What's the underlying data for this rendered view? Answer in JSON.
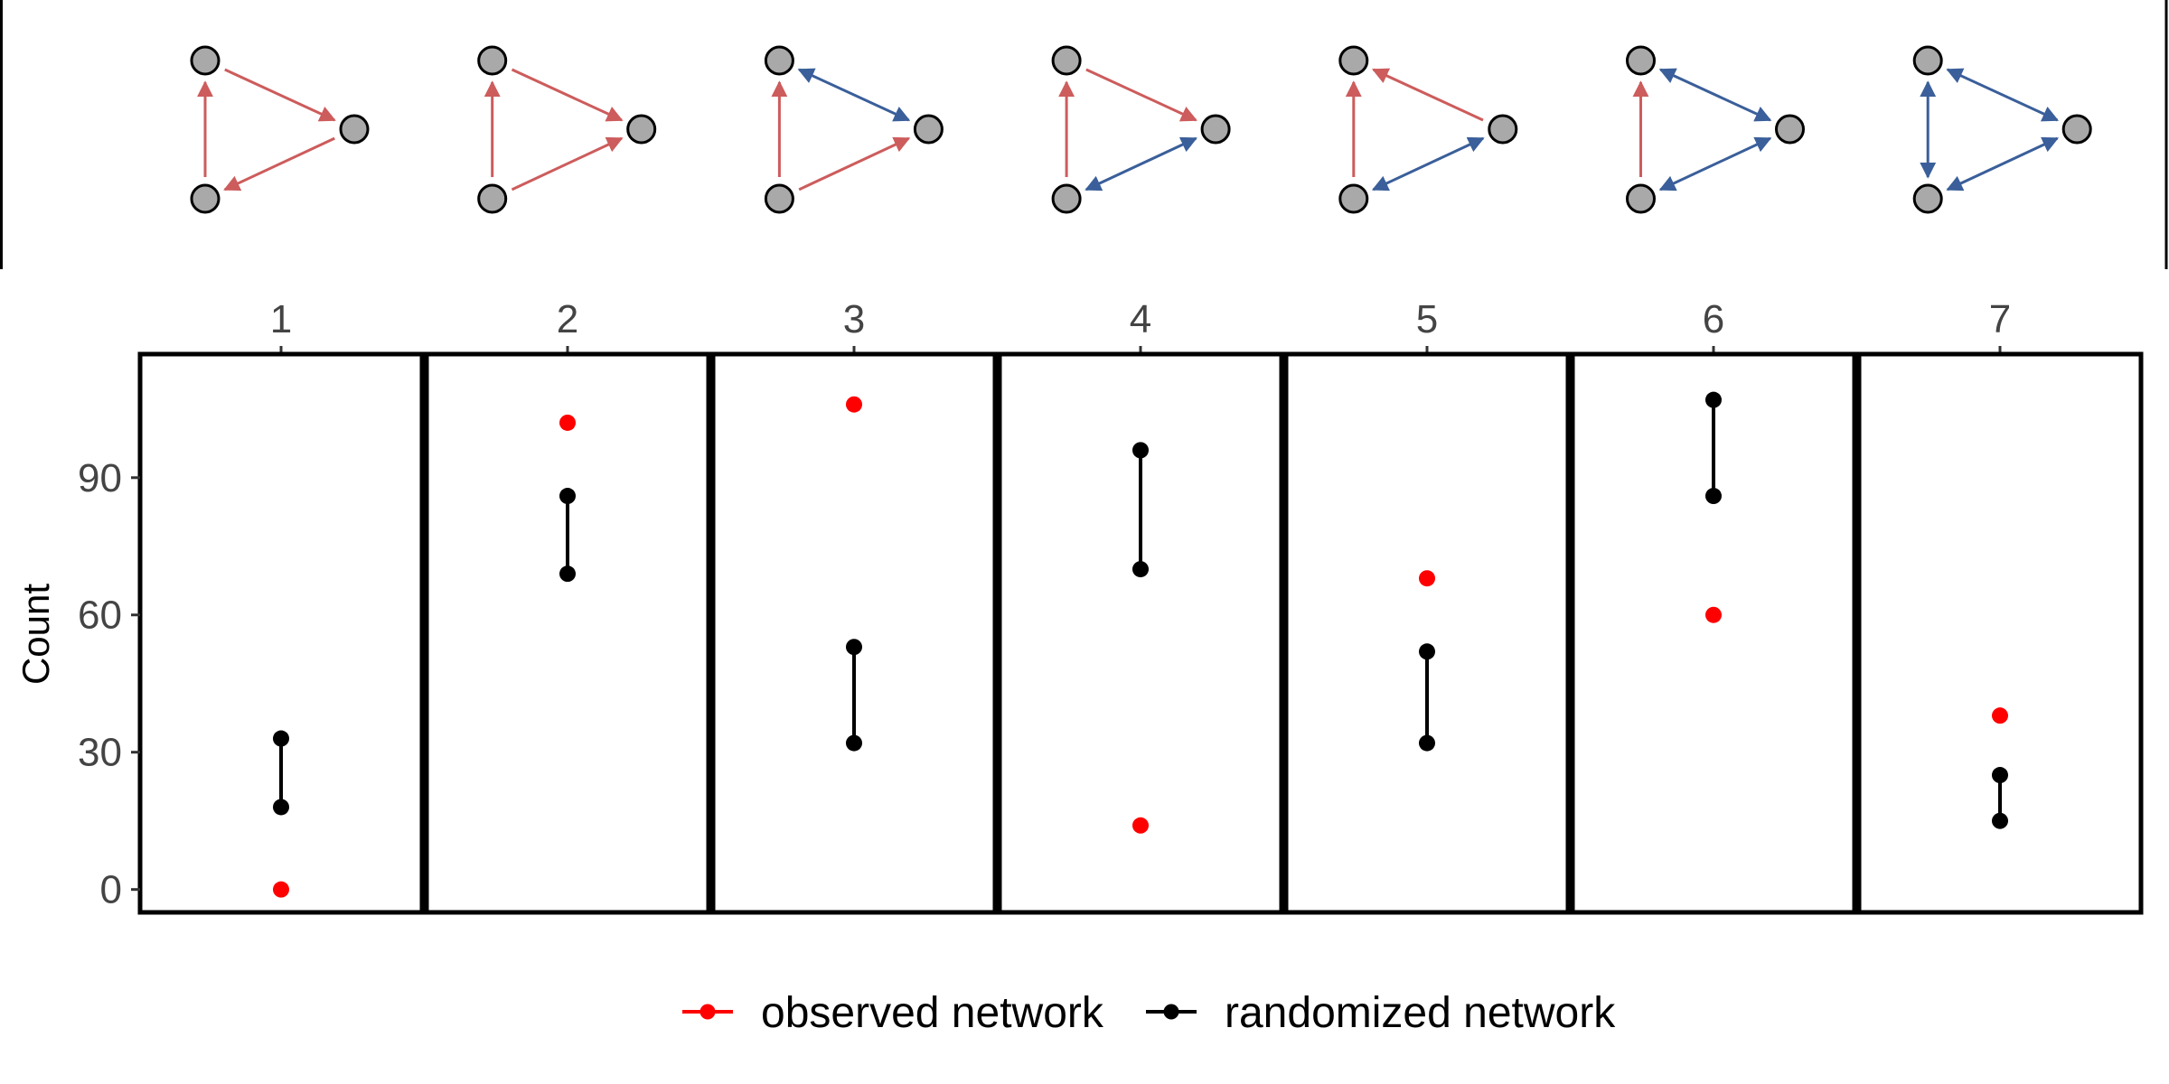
{
  "chart_data": {
    "type": "scatter",
    "ylabel": "Count",
    "ylim": [
      -5,
      117
    ],
    "yticks": [
      0,
      30,
      60,
      90
    ],
    "yticklabels": [
      "0",
      "30",
      "60",
      "90"
    ],
    "categories": [
      "1",
      "2",
      "3",
      "4",
      "5",
      "6",
      "7"
    ],
    "series": [
      {
        "name": "observed network",
        "kind": "point",
        "color": "#ff0000",
        "values": [
          0,
          102,
          106,
          14,
          68,
          60,
          38
        ]
      },
      {
        "name": "randomized network",
        "kind": "range",
        "color": "#000000",
        "ranges": [
          [
            18,
            33
          ],
          [
            69,
            86
          ],
          [
            32,
            53
          ],
          [
            70,
            96
          ],
          [
            32,
            52
          ],
          [
            86,
            107
          ],
          [
            15,
            25
          ]
        ]
      }
    ],
    "motifs": [
      {
        "id": "1",
        "edges": [
          [
            "left-bottom",
            "left-top",
            "forward"
          ],
          [
            "left-top",
            "right",
            "forward"
          ],
          [
            "right",
            "left-bottom",
            "forward"
          ]
        ]
      },
      {
        "id": "2",
        "edges": [
          [
            "left-bottom",
            "left-top",
            "forward"
          ],
          [
            "left-top",
            "right",
            "forward"
          ],
          [
            "left-bottom",
            "right",
            "forward"
          ]
        ]
      },
      {
        "id": "3",
        "edges": [
          [
            "left-bottom",
            "left-top",
            "forward"
          ],
          [
            "left-top",
            "right",
            "both"
          ],
          [
            "left-bottom",
            "right",
            "forward"
          ]
        ]
      },
      {
        "id": "4",
        "edges": [
          [
            "left-bottom",
            "left-top",
            "forward"
          ],
          [
            "left-top",
            "right",
            "forward"
          ],
          [
            "left-bottom",
            "right",
            "both"
          ]
        ]
      },
      {
        "id": "5",
        "edges": [
          [
            "left-bottom",
            "left-top",
            "forward"
          ],
          [
            "right",
            "left-top",
            "forward"
          ],
          [
            "left-bottom",
            "right",
            "both"
          ]
        ]
      },
      {
        "id": "6",
        "edges": [
          [
            "left-bottom",
            "left-top",
            "forward"
          ],
          [
            "left-top",
            "right",
            "both"
          ],
          [
            "left-bottom",
            "right",
            "both"
          ]
        ]
      },
      {
        "id": "7",
        "edges": [
          [
            "left-bottom",
            "left-top",
            "both"
          ],
          [
            "left-top",
            "right",
            "both"
          ],
          [
            "left-bottom",
            "right",
            "both"
          ]
        ]
      }
    ],
    "colors": {
      "single_edge": "#cd5c5c",
      "mutual_edge": "#3a5f9a",
      "node_fill": "#a9a9a9"
    },
    "grid": false,
    "legend_position": "bottom"
  }
}
